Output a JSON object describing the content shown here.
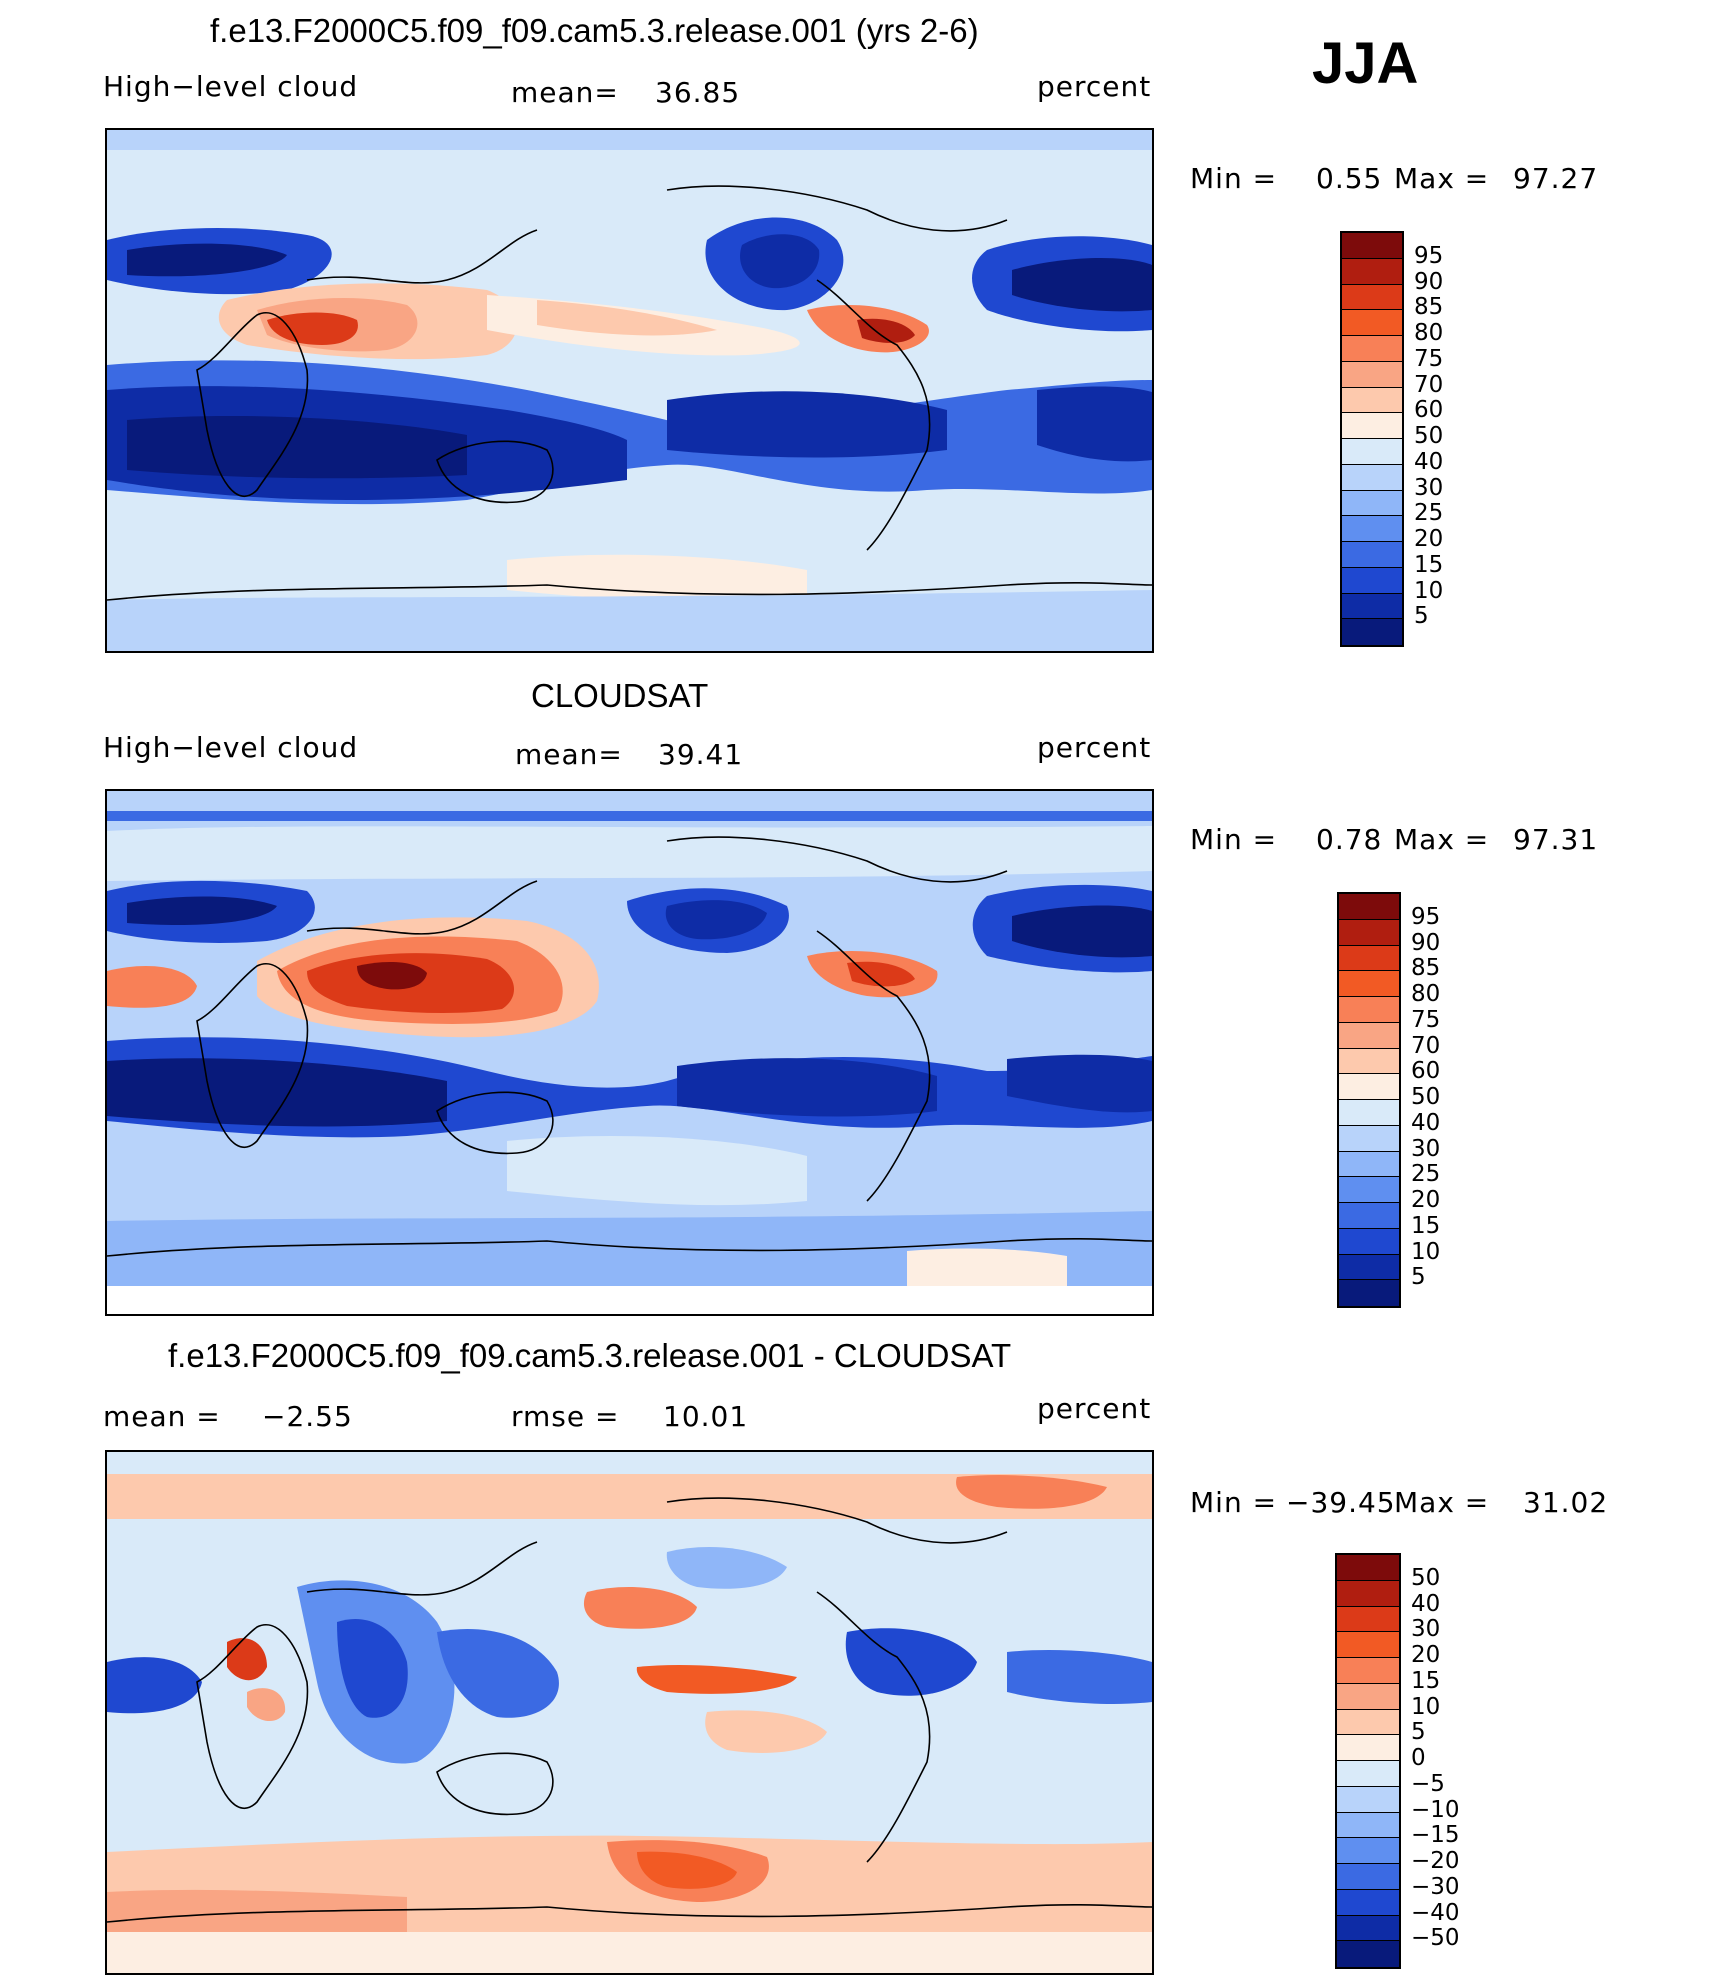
{
  "season": "JJA",
  "panels": [
    {
      "title": "f.e13.F2000C5.f09_f09.cam5.3.release.001 (yrs 2-6)",
      "left_label": "High−level cloud",
      "center_label": "mean=",
      "center_value": "36.85",
      "right_label": "percent",
      "minmax": {
        "min_label": "Min =",
        "min": "0.55",
        "max_label": "Max =",
        "max": "97.27"
      },
      "colorbar": {
        "labels": [
          "95",
          "90",
          "85",
          "80",
          "75",
          "70",
          "60",
          "50",
          "40",
          "30",
          "25",
          "20",
          "15",
          "10",
          "5"
        ],
        "colors": [
          "#7d0b0b",
          "#b01e10",
          "#dc3a18",
          "#f25a24",
          "#f88057",
          "#f9a584",
          "#fdc9ad",
          "#fdeee2",
          "#d9eaf9",
          "#b8d3fa",
          "#8fb6f8",
          "#5f8ff0",
          "#3b6ae3",
          "#1f48d0",
          "#0e2ca6",
          "#081a7b"
        ]
      },
      "chart_data": {
        "type": "heatmap",
        "title": "f.e13.F2000C5.f09_f09.cam5.3.release.001 (yrs 2-6)",
        "variable": "High−level cloud",
        "units": "percent",
        "mean": 36.85,
        "min": 0.55,
        "max": 97.27,
        "contour_levels": [
          5,
          10,
          15,
          20,
          25,
          30,
          40,
          50,
          60,
          70,
          75,
          80,
          85,
          90,
          95
        ]
      }
    },
    {
      "title": "CLOUDSAT",
      "left_label": "High−level cloud",
      "center_label": "mean=",
      "center_value": "39.41",
      "right_label": "percent",
      "minmax": {
        "min_label": "Min =",
        "min": "0.78",
        "max_label": "Max =",
        "max": "97.31"
      },
      "colorbar": {
        "labels": [
          "95",
          "90",
          "85",
          "80",
          "75",
          "70",
          "60",
          "50",
          "40",
          "30",
          "25",
          "20",
          "15",
          "10",
          "5"
        ],
        "colors": [
          "#7d0b0b",
          "#b01e10",
          "#dc3a18",
          "#f25a24",
          "#f88057",
          "#f9a584",
          "#fdc9ad",
          "#fdeee2",
          "#d9eaf9",
          "#b8d3fa",
          "#8fb6f8",
          "#5f8ff0",
          "#3b6ae3",
          "#1f48d0",
          "#0e2ca6",
          "#081a7b"
        ]
      },
      "chart_data": {
        "type": "heatmap",
        "title": "CLOUDSAT",
        "variable": "High−level cloud",
        "units": "percent",
        "mean": 39.41,
        "min": 0.78,
        "max": 97.31,
        "contour_levels": [
          5,
          10,
          15,
          20,
          25,
          30,
          40,
          50,
          60,
          70,
          75,
          80,
          85,
          90,
          95
        ]
      }
    },
    {
      "title": "f.e13.F2000C5.f09_f09.cam5.3.release.001 - CLOUDSAT",
      "left_label": "mean =",
      "left_value": "−2.55",
      "center_label": "rmse =",
      "center_value": "10.01",
      "right_label": "percent",
      "minmax": {
        "min_label": "Min =",
        "min": "−39.45",
        "max_label": "Max =",
        "max": "31.02"
      },
      "colorbar": {
        "labels": [
          "50",
          "40",
          "30",
          "20",
          "15",
          "10",
          "5",
          "0",
          "−5",
          "−10",
          "−15",
          "−20",
          "−30",
          "−40",
          "−50"
        ],
        "colors": [
          "#7d0b0b",
          "#b01e10",
          "#dc3a18",
          "#f25a24",
          "#f88057",
          "#f9a584",
          "#fdc9ad",
          "#fdeee2",
          "#d9eaf9",
          "#b8d3fa",
          "#8fb6f8",
          "#5f8ff0",
          "#3b6ae3",
          "#1f48d0",
          "#0e2ca6",
          "#081a7b"
        ]
      },
      "chart_data": {
        "type": "heatmap",
        "title": "f.e13.F2000C5.f09_f09.cam5.3.release.001 - CLOUDSAT",
        "units": "percent",
        "mean": -2.55,
        "rmse": 10.01,
        "min": -39.45,
        "max": 31.02,
        "contour_levels": [
          -50,
          -40,
          -30,
          -20,
          -15,
          -10,
          -5,
          0,
          5,
          10,
          15,
          20,
          30,
          40,
          50
        ]
      }
    }
  ]
}
